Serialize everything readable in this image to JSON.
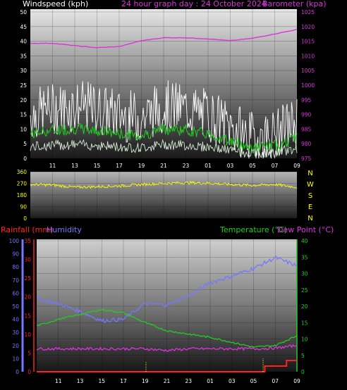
{
  "colors": {
    "background": "#000000",
    "windspeed": "#ffffff",
    "wind_avg": "#e8ffe8",
    "wind_gust_trace": "#22cc22",
    "barometer": "#dd33dd",
    "direction": "#ffff00",
    "rainfall": "#ff2222",
    "humidity": "#7777ff",
    "temperature": "#22cc22",
    "dewpoint": "#dd33dd",
    "daily_rain": "#ffff00"
  },
  "header": {
    "windspeed_label": "Windspeed (kph)",
    "title": "24 hour graph day : 24 October 2024",
    "barometer_label": "Barometer (kpa)"
  },
  "x_ticks": [
    "11",
    "13",
    "15",
    "17",
    "19",
    "21",
    "23",
    "01",
    "03",
    "05",
    "07",
    "09"
  ],
  "compass": [
    "N",
    "W",
    "S",
    "E",
    "N"
  ],
  "lower_header": {
    "rainfall_label": "Rainfall (mm)",
    "humidity_label": "Humidity",
    "temperature_label": "Temperature (°C)",
    "dewpoint_label": "Dew Point (°C)"
  },
  "chart_data": [
    {
      "type": "line",
      "title": "24 hour graph day : 24 October 2024",
      "left_axis": {
        "label": "Windspeed (kph)",
        "range": [
          0,
          50
        ],
        "ticks": [
          "0",
          "5",
          "10",
          "15",
          "20",
          "25",
          "30",
          "35",
          "40",
          "45",
          "50"
        ]
      },
      "right_axis": {
        "label": "Barometer (kpa)",
        "range": [
          975,
          1025
        ],
        "ticks": [
          "975",
          "980",
          "985",
          "990",
          "995",
          "1000",
          "1005",
          "1010",
          "1015",
          "1020",
          "1025"
        ]
      },
      "x": [
        "09",
        "11",
        "13",
        "15",
        "17",
        "19",
        "21",
        "23",
        "01",
        "03",
        "05",
        "07",
        "09"
      ],
      "series": [
        {
          "name": "Windspeed (kph)",
          "axis": "left",
          "values": [
            14,
            16,
            17,
            16,
            14,
            13,
            17,
            16,
            14,
            10,
            6,
            7,
            12
          ]
        },
        {
          "name": "Barometer (kpa)",
          "axis": "right",
          "values": [
            1014.3,
            1014.3,
            1013.5,
            1012.8,
            1013.2,
            1015.2,
            1016.2,
            1016.2,
            1015.8,
            1015.2,
            1016.0,
            1017.5,
            1019.0
          ]
        }
      ],
      "grid": true
    },
    {
      "type": "line",
      "left_axis": {
        "range": [
          0,
          360
        ],
        "ticks": [
          "0",
          "90",
          "180",
          "270",
          "360"
        ]
      },
      "right_axis": {
        "ticks": [
          "N",
          "W",
          "S",
          "E",
          "N"
        ]
      },
      "x": [
        "09",
        "11",
        "13",
        "15",
        "17",
        "19",
        "21",
        "23",
        "01",
        "03",
        "05",
        "07",
        "09"
      ],
      "series": [
        {
          "axis": "left",
          "values": [
            262,
            258,
            240,
            245,
            250,
            262,
            270,
            275,
            272,
            262,
            255,
            262,
            240
          ]
        }
      ],
      "grid": true
    },
    {
      "type": "line",
      "far_left_axis": {
        "label": "Humidity",
        "range": [
          0,
          100
        ],
        "ticks": [
          "0",
          "10",
          "20",
          "30",
          "40",
          "50",
          "60",
          "70",
          "80",
          "90",
          "100"
        ]
      },
      "left_axis": {
        "label": "Rainfall (mm)",
        "range": [
          0,
          35
        ],
        "ticks": [
          "0",
          "5",
          "10",
          "15",
          "20",
          "25",
          "30",
          "35"
        ]
      },
      "right_axis": {
        "label": "Temperature (°C)",
        "range": [
          0,
          40
        ],
        "ticks": [
          "0",
          "5",
          "10",
          "15",
          "20",
          "25",
          "30",
          "35",
          "40"
        ]
      },
      "x": [
        "09",
        "11",
        "13",
        "15",
        "17",
        "19",
        "21",
        "23",
        "01",
        "03",
        "05",
        "07",
        "09"
      ],
      "series": [
        {
          "name": "Humidity",
          "axis": "far_left",
          "values": [
            56,
            52,
            46,
            39,
            40,
            52,
            51,
            58,
            68,
            73,
            79,
            87,
            81
          ]
        },
        {
          "name": "Temperature (°C)",
          "axis": "right",
          "values": [
            14.0,
            16.0,
            17.5,
            19.0,
            18.0,
            15.0,
            12.5,
            11.5,
            10.5,
            9.0,
            7.5,
            8.0,
            11.0
          ]
        },
        {
          "name": "Dew Point (°C)",
          "axis": "right",
          "values": [
            7.0,
            7.0,
            7.0,
            7.0,
            7.0,
            7.0,
            6.5,
            7.0,
            7.0,
            7.0,
            7.0,
            7.2,
            8.0
          ]
        },
        {
          "name": "Rainfall (mm)",
          "axis": "left",
          "values": [
            0,
            0,
            0,
            0,
            0,
            0,
            0,
            0,
            0,
            0,
            0,
            1.5,
            3
          ]
        }
      ],
      "grid": true
    }
  ]
}
